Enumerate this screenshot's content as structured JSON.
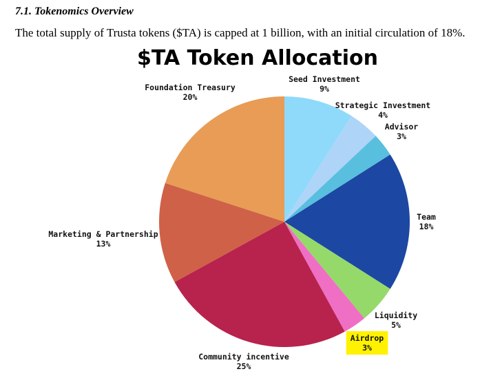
{
  "document": {
    "section_heading": "7.1. Tokenomics Overview",
    "intro": "The total supply of Trusta tokens ($TA) is capped at 1 billion, with an initial circulation of 18%."
  },
  "chart_data": {
    "type": "pie",
    "title": "$TA Token Allocation",
    "start_angle_deg": 0,
    "direction": "clockwise",
    "legend": "none",
    "slices": [
      {
        "name": "Seed Investment",
        "value": 9,
        "label_value": "9%",
        "color": "#8fdafa"
      },
      {
        "name": "Strategic Investment",
        "value": 4,
        "label_value": "4%",
        "color": "#aed4f8"
      },
      {
        "name": "Advisor",
        "value": 3,
        "label_value": "3%",
        "color": "#58bfdf"
      },
      {
        "name": "Team",
        "value": 18,
        "label_value": "18%",
        "color": "#1c47a3"
      },
      {
        "name": "Liquidity",
        "value": 5,
        "label_value": "5%",
        "color": "#95d96a"
      },
      {
        "name": "Airdrop",
        "value": 3,
        "label_value": "3%",
        "color": "#ef6fc4",
        "label_highlight": "#fff200"
      },
      {
        "name": "Community incentive",
        "value": 25,
        "label_value": "25%",
        "color": "#b7234d"
      },
      {
        "name": "Marketing & Partnership",
        "value": 13,
        "label_value": "13%",
        "color": "#cf6148"
      },
      {
        "name": "Foundation Treasury",
        "value": 20,
        "label_value": "20%",
        "color": "#e89c55"
      }
    ]
  }
}
